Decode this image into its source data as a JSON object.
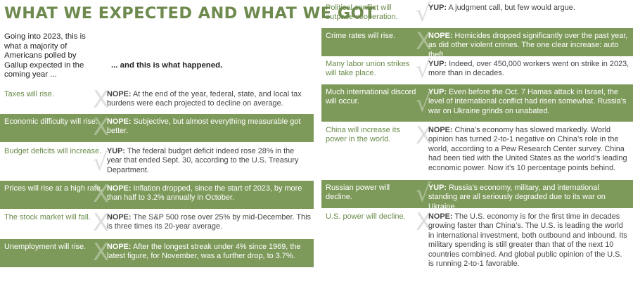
{
  "title": "WHAT WE EXPECTED AND WHAT WE GOT",
  "intro": "Going into 2023, this is what a majority of Americans polled by Gallup expected in the coming year ...",
  "happened_label": "... and this is what happened.",
  "colors": {
    "accent": "#6e8a4e",
    "shade": "#7e9a5b"
  },
  "left_items": [
    {
      "prediction": "Taxes will rise.",
      "mark": "X",
      "verdict": "NOPE:",
      "outcome": "At the end of the year, federal, state, and local tax burdens were each projected to decline on average."
    },
    {
      "prediction": "Economic difficulty will rise.",
      "mark": "X",
      "verdict": "NOPE:",
      "outcome": "Subjective, but almost everything measurable got better."
    },
    {
      "prediction": "Budget deficits will increase.",
      "mark": "√",
      "verdict": "YUP:",
      "outcome": "The federal budget deficit indeed rose 28% in the year that ended Sept. 30, according to the U.S. Treasury Department."
    },
    {
      "prediction": "Prices will rise at a high rate.",
      "mark": "X",
      "verdict": "NOPE:",
      "outcome": "Inflation dropped, since the start of 2023, by more than half to 3.2% annually in October."
    },
    {
      "prediction": "The stock market will fall.",
      "mark": "X",
      "verdict": "NOPE:",
      "outcome": "The S&P 500 rose over 25% by mid-December. This is three times its 20-year average."
    },
    {
      "prediction": "Unemployment will rise.",
      "mark": "X",
      "verdict": "NOPE:",
      "outcome": "After the longest streak under 4% since 1969, the latest figure, for November, was a further drop, to 3.7%."
    }
  ],
  "right_items": [
    {
      "prediction": "Political conflict will outpace cooperation.",
      "mark": "√",
      "verdict": "YUP:",
      "outcome": "A judgment call, but few would argue."
    },
    {
      "prediction": "Crime rates will rise.",
      "mark": "X",
      "verdict": "NOPE:",
      "outcome": "Homicides dropped significantly over the past year, as did other violent crimes. The one clear increase: auto theft."
    },
    {
      "prediction": "Many labor union strikes will take place.",
      "mark": "√",
      "verdict": "YUP:",
      "outcome": "Indeed, over 450,000 workers went on strike in 2023, more than in decades."
    },
    {
      "prediction": "Much international discord will occur.",
      "mark": "√",
      "verdict": "YUP:",
      "outcome": "Even before the Oct. 7 Hamas attack in Israel, the level of international conflict had risen somewhat. Russia’s war on Ukraine grinds on unabated."
    },
    {
      "prediction": "China will increase its power in the world.",
      "mark": "X",
      "verdict": "NOPE:",
      "outcome": "China’s economy has slowed markedly. World opinion has turned 2-to-1 negative on China’s role in the world, according to a Pew Research Center survey. China had been tied with the United States as the world’s leading economic power. Now it’s 10 percentage points behind."
    },
    {
      "prediction": "Russian power will decline.",
      "mark": "√",
      "verdict": "YUP:",
      "outcome": "Russia’s economy, military, and international standing are all seriously degraded due to its war on Ukraine."
    },
    {
      "prediction": "U.S. power will decline.",
      "mark": "X",
      "verdict": "NOPE:",
      "outcome": "The U.S. economy is for the first time in decades growing faster than China’s. The U.S. is leading the world in international investment, both outbound and inbound. Its military spending is still greater than that of the next 10 countries combined. And global public opinion of the U.S. is running 2-to-1 favorable."
    }
  ]
}
